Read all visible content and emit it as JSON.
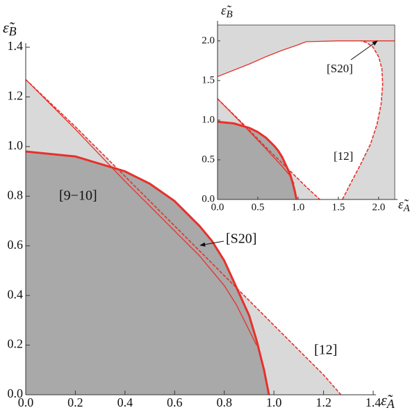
{
  "chart_data": [
    {
      "type": "line",
      "xlim": [
        0,
        1.4
      ],
      "ylim": [
        0,
        1.4
      ],
      "xticks": [
        {
          "value": 0,
          "label": "0.0"
        },
        0.2,
        0.4,
        0.6,
        0.8,
        {
          "value": 1,
          "label": "1.0"
        },
        1.2,
        1.4
      ],
      "yticks": [
        {
          "value": 0,
          "label": "0.0"
        },
        0.2,
        0.4,
        0.6,
        0.8,
        {
          "value": 1,
          "label": "1.0"
        },
        1.2,
        1.4
      ],
      "x_label": {
        "symbol": "ε̃",
        "subscript": "A"
      },
      "y_label": {
        "symbol": "ε̃",
        "subscript": "B"
      },
      "fill_colors": {
        "outer": "#d9d9d9",
        "inner": "#a9a9a9"
      },
      "series": [
        {
          "name": "[9−10]",
          "color": "#e8302a",
          "style": "thick",
          "x": [
            0,
            0.2,
            0.4,
            0.5,
            0.6,
            0.7,
            0.75,
            0.8,
            0.85,
            0.9,
            0.93,
            0.96,
            0.98
          ],
          "values": [
            0.98,
            0.96,
            0.9,
            0.85,
            0.78,
            0.68,
            0.62,
            0.54,
            0.43,
            0.32,
            0.22,
            0.1,
            0
          ]
        },
        {
          "name": "[S20]",
          "color": "#e8302a",
          "style": "thin",
          "x": [
            0,
            0.2,
            0.4,
            0.5,
            0.6,
            0.7,
            0.8,
            0.85,
            0.9,
            0.93
          ],
          "values": [
            1.27,
            1.07,
            0.86,
            0.76,
            0.66,
            0.56,
            0.44,
            0.36,
            0.26,
            0.2
          ]
        },
        {
          "name": "[12]",
          "color": "#e8302a",
          "style": "dashed",
          "x": [
            0,
            0.2,
            0.4,
            0.6,
            0.8,
            1.0,
            1.2,
            1.27
          ],
          "values": [
            1.27,
            1.08,
            0.88,
            0.68,
            0.48,
            0.28,
            0.08,
            0
          ]
        }
      ]
    },
    {
      "type": "line",
      "xlim": [
        0,
        2.2
      ],
      "ylim": [
        0,
        2.2
      ],
      "xticks": [
        {
          "value": 0,
          "label": "0.0"
        },
        0.5,
        {
          "value": 1,
          "label": "1.0"
        },
        1.5,
        {
          "value": 2,
          "label": "2.0"
        }
      ],
      "yticks": [
        {
          "value": 0,
          "label": "0.0"
        },
        0.5,
        {
          "value": 1,
          "label": "1.0"
        },
        1.5,
        {
          "value": 2,
          "label": "2.0"
        }
      ],
      "x_label": {
        "symbol": "ε̃",
        "subscript": "A"
      },
      "y_label": {
        "symbol": "ε̃",
        "subscript": "B"
      },
      "fill_colors": {
        "outer": "#d9d9d9",
        "inner": "#a9a9a9",
        "open": "#ffffff"
      },
      "series": [
        {
          "color": "#e8302a",
          "style": "thick",
          "x": [
            0,
            0.2,
            0.4,
            0.5,
            0.6,
            0.7,
            0.75,
            0.8,
            0.85,
            0.9,
            0.93,
            0.96,
            0.98
          ],
          "values": [
            0.98,
            0.96,
            0.9,
            0.85,
            0.78,
            0.68,
            0.62,
            0.54,
            0.43,
            0.32,
            0.22,
            0.1,
            0
          ]
        },
        {
          "color": "#e8302a",
          "style": "dashed",
          "x": [
            0,
            0.3,
            0.6,
            0.9,
            1.1,
            1.27
          ],
          "values": [
            1.27,
            0.97,
            0.66,
            0.36,
            0.16,
            0
          ]
        },
        {
          "color": "#e8302a",
          "style": "thin",
          "x": [
            0,
            0.3,
            0.6,
            0.8,
            0.9,
            0.95
          ],
          "values": [
            1.27,
            0.96,
            0.64,
            0.42,
            0.3,
            0.2
          ]
        },
        {
          "name": "[S20]",
          "color": "#e8302a",
          "style": "thin",
          "x": [
            0,
            0.2,
            0.4,
            0.6,
            0.8,
            1.0,
            1.1,
            1.5,
            2.0,
            2.2
          ],
          "values": [
            1.55,
            1.63,
            1.71,
            1.8,
            1.88,
            1.95,
            1.99,
            2.0,
            2.0,
            2.0
          ]
        },
        {
          "name": "[12]",
          "color": "#e8302a",
          "style": "dashed",
          "x": [
            1.55,
            1.65,
            1.78,
            1.9,
            1.98,
            2.03,
            2.05,
            2.04,
            2.0,
            1.93,
            1.85,
            1.78
          ],
          "values": [
            0,
            0.2,
            0.45,
            0.7,
            0.95,
            1.2,
            1.45,
            1.65,
            1.8,
            1.92,
            1.98,
            2.0
          ]
        }
      ]
    }
  ]
}
